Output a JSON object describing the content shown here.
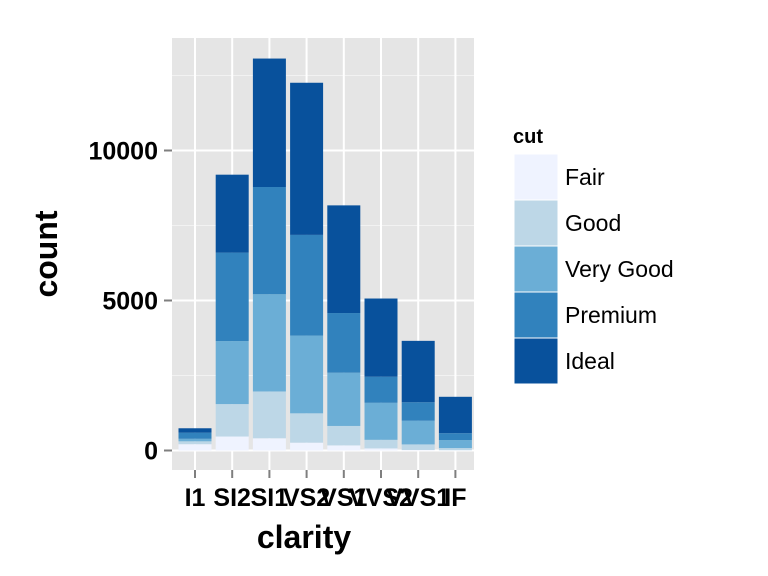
{
  "chart_data": {
    "type": "bar",
    "stacked": true,
    "xlabel": "clarity",
    "ylabel": "count",
    "categories": [
      "I1",
      "SI2",
      "SI1",
      "VS2",
      "VS1",
      "VVS2",
      "VVS1",
      "IF"
    ],
    "yticks": [
      0,
      5000,
      10000
    ],
    "ylim": [
      -650,
      13750
    ],
    "grid": true,
    "legend": {
      "title": "cut",
      "position": "right"
    },
    "series": [
      {
        "name": "Fair",
        "color": "#eff3ff",
        "values": [
          210,
          466,
          408,
          261,
          170,
          69,
          17,
          9
        ]
      },
      {
        "name": "Good",
        "color": "#bdd7e7",
        "values": [
          96,
          1081,
          1560,
          978,
          648,
          286,
          186,
          71
        ]
      },
      {
        "name": "Very Good",
        "color": "#6baed6",
        "values": [
          84,
          2100,
          3240,
          2591,
          1775,
          1235,
          789,
          268
        ]
      },
      {
        "name": "Premium",
        "color": "#3182bd",
        "values": [
          205,
          2949,
          3575,
          3357,
          1989,
          870,
          616,
          230
        ]
      },
      {
        "name": "Ideal",
        "color": "#08519c",
        "values": [
          146,
          2598,
          4282,
          5071,
          3589,
          2606,
          2047,
          1212
        ]
      }
    ]
  }
}
